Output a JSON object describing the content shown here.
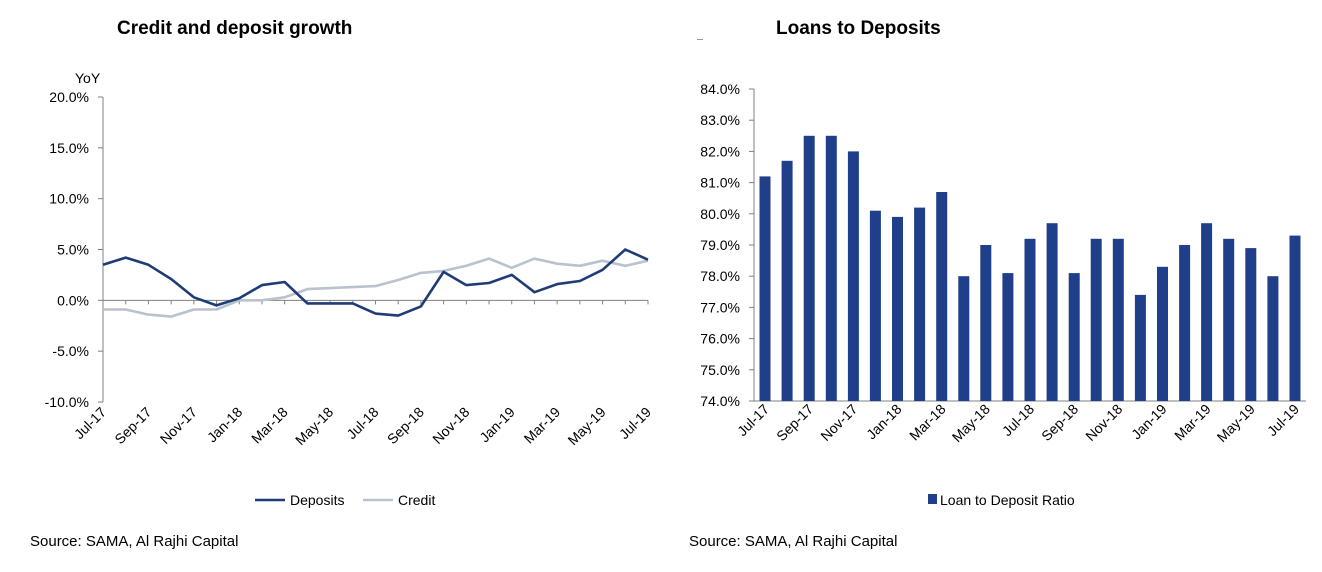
{
  "colors": {
    "deposits": "#1f3c78",
    "credit": "#b9c2ce",
    "bar": "#1f3f8a",
    "axis": "#808080"
  },
  "chart_data": [
    {
      "type": "line",
      "title": "Credit and deposit growth",
      "ylabel": "YoY",
      "ylim": [
        -10,
        20
      ],
      "yticks": [
        "20.0%",
        "15.0%",
        "10.0%",
        "5.0%",
        "0.0%",
        "-5.0%",
        "-10.0%"
      ],
      "x": [
        "Jul-17",
        "Aug-17",
        "Sep-17",
        "Oct-17",
        "Nov-17",
        "Dec-17",
        "Jan-18",
        "Feb-18",
        "Mar-18",
        "Apr-18",
        "May-18",
        "Jun-18",
        "Jul-18",
        "Aug-18",
        "Sep-18",
        "Oct-18",
        "Nov-18",
        "Dec-18",
        "Jan-19",
        "Feb-19",
        "Mar-19",
        "Apr-19",
        "May-19",
        "Jun-19",
        "Jul-19"
      ],
      "xtick_labels": [
        "Jul-17",
        "Sep-17",
        "Nov-17",
        "Jan-18",
        "Mar-18",
        "May-18",
        "Jul-18",
        "Sep-18",
        "Nov-18",
        "Jan-19",
        "Mar-19",
        "May-19",
        "Jul-19"
      ],
      "series": [
        {
          "name": "Deposits",
          "values": [
            3.5,
            4.2,
            3.5,
            2.1,
            0.3,
            -0.5,
            0.2,
            1.5,
            1.8,
            -0.3,
            -0.3,
            -0.3,
            -1.3,
            -1.5,
            -0.6,
            2.8,
            1.5,
            1.7,
            2.5,
            0.8,
            1.6,
            1.9,
            3.0,
            5.0,
            4.0
          ]
        },
        {
          "name": "Credit",
          "values": [
            -0.9,
            -0.9,
            -1.4,
            -1.6,
            -0.9,
            -0.9,
            0.0,
            0.0,
            0.3,
            1.1,
            1.2,
            1.3,
            1.4,
            2.0,
            2.7,
            2.9,
            3.4,
            4.1,
            3.2,
            4.1,
            3.6,
            3.4,
            3.9,
            3.4,
            3.9
          ]
        }
      ],
      "legend": "bottom",
      "grid": false,
      "source": "Source: SAMA, Al Rajhi Capital"
    },
    {
      "type": "bar",
      "title": "Loans to Deposits",
      "ylim": [
        74,
        84
      ],
      "yticks": [
        "84.0%",
        "83.0%",
        "82.0%",
        "81.0%",
        "80.0%",
        "79.0%",
        "78.0%",
        "77.0%",
        "76.0%",
        "75.0%",
        "74.0%"
      ],
      "categories": [
        "Jul-17",
        "Aug-17",
        "Sep-17",
        "Oct-17",
        "Nov-17",
        "Dec-17",
        "Jan-18",
        "Feb-18",
        "Mar-18",
        "Apr-18",
        "May-18",
        "Jun-18",
        "Jul-18",
        "Aug-18",
        "Sep-18",
        "Oct-18",
        "Nov-18",
        "Dec-18",
        "Jan-19",
        "Feb-19",
        "Mar-19",
        "Apr-19",
        "May-19",
        "Jun-19",
        "Jul-19"
      ],
      "xtick_labels": [
        "Jul-17",
        "Sep-17",
        "Nov-17",
        "Jan-18",
        "Mar-18",
        "May-18",
        "Jul-18",
        "Sep-18",
        "Nov-18",
        "Jan-19",
        "Mar-19",
        "May-19",
        "Jul-19"
      ],
      "series": [
        {
          "name": "Loan to Deposit Ratio",
          "values": [
            81.2,
            81.7,
            82.5,
            82.5,
            82.0,
            80.1,
            79.9,
            80.2,
            80.7,
            78.0,
            79.0,
            78.1,
            79.2,
            79.7,
            78.1,
            79.2,
            79.2,
            77.4,
            78.3,
            79.0,
            79.7,
            79.2,
            78.9,
            78.0,
            79.3
          ]
        }
      ],
      "legend": "bottom",
      "grid": false,
      "source": "Source: SAMA, Al Rajhi Capital"
    }
  ]
}
